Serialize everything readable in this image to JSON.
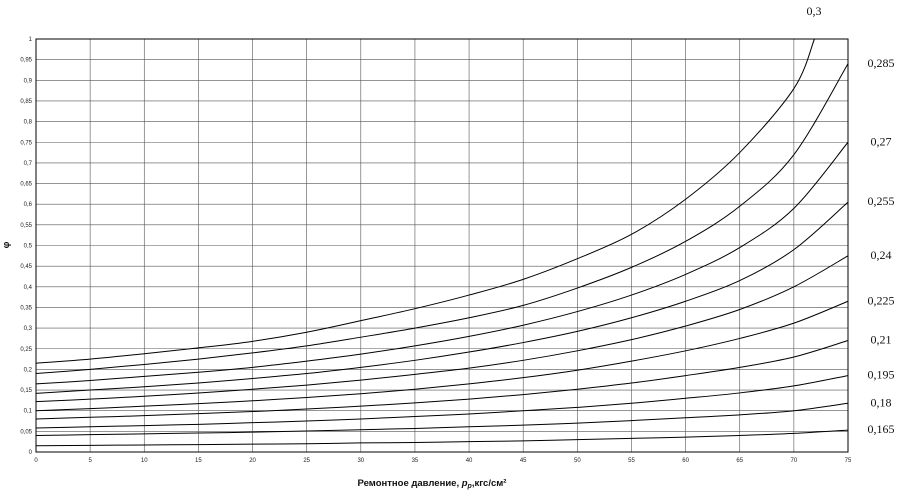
{
  "chart_data": {
    "type": "line",
    "xlabel": "Ремонтное давление, ",
    "xlabel_var": "p",
    "xlabel_sub": "р",
    "xlabel_unit": ",кгс/см²",
    "ylabel": "φ",
    "xlim": [
      0,
      75
    ],
    "ylim": [
      0,
      1
    ],
    "grid": true,
    "x_ticks": [
      "0",
      "5",
      "10",
      "15",
      "20",
      "25",
      "30",
      "35",
      "40",
      "45",
      "50",
      "55",
      "60",
      "65",
      "70",
      "75"
    ],
    "y_ticks": [
      "0",
      "0,05",
      "0,1",
      "0,15",
      "0,2",
      "0,25",
      "0,3",
      "0,35",
      "0,4",
      "0,45",
      "0,5",
      "0,55",
      "0,6",
      "0,65",
      "0,7",
      "0,75",
      "0,8",
      "0,85",
      "0,9",
      "0,95",
      "1"
    ],
    "x": [
      0,
      5,
      10,
      15,
      20,
      25,
      30,
      35,
      40,
      45,
      50,
      55,
      60,
      65,
      70,
      75
    ],
    "series": [
      {
        "name": "0,3",
        "values": [
          0.215,
          0.225,
          0.238,
          0.252,
          0.268,
          0.29,
          0.318,
          0.347,
          0.38,
          0.418,
          0.468,
          0.527,
          0.612,
          0.725,
          0.88,
          null
        ],
        "end": [
          71.9,
          1.0
        ]
      },
      {
        "name": "0,285",
        "values": [
          0.19,
          0.2,
          0.212,
          0.225,
          0.24,
          0.257,
          0.278,
          0.3,
          0.325,
          0.355,
          0.397,
          0.447,
          0.51,
          0.595,
          0.72,
          0.94
        ]
      },
      {
        "name": "0,27",
        "values": [
          0.165,
          0.173,
          0.183,
          0.193,
          0.205,
          0.22,
          0.237,
          0.257,
          0.28,
          0.307,
          0.34,
          0.38,
          0.43,
          0.495,
          0.59,
          0.75
        ]
      },
      {
        "name": "0,255",
        "values": [
          0.142,
          0.15,
          0.158,
          0.167,
          0.178,
          0.19,
          0.205,
          0.222,
          0.242,
          0.265,
          0.292,
          0.325,
          0.365,
          0.415,
          0.49,
          0.605
        ]
      },
      {
        "name": "0,24",
        "values": [
          0.122,
          0.128,
          0.135,
          0.143,
          0.152,
          0.162,
          0.174,
          0.188,
          0.203,
          0.222,
          0.245,
          0.272,
          0.305,
          0.345,
          0.4,
          0.475
        ]
      },
      {
        "name": "0,225",
        "values": [
          0.1,
          0.105,
          0.111,
          0.117,
          0.124,
          0.132,
          0.141,
          0.152,
          0.165,
          0.18,
          0.198,
          0.22,
          0.245,
          0.275,
          0.312,
          0.365
        ]
      },
      {
        "name": "0,21",
        "values": [
          0.08,
          0.084,
          0.088,
          0.093,
          0.098,
          0.104,
          0.111,
          0.119,
          0.128,
          0.139,
          0.152,
          0.167,
          0.185,
          0.205,
          0.23,
          0.27
        ]
      },
      {
        "name": "0,195",
        "values": [
          0.058,
          0.061,
          0.064,
          0.067,
          0.071,
          0.075,
          0.08,
          0.086,
          0.092,
          0.1,
          0.108,
          0.118,
          0.13,
          0.143,
          0.16,
          0.185
        ]
      },
      {
        "name": "0,18",
        "values": [
          0.04,
          0.042,
          0.044,
          0.046,
          0.048,
          0.051,
          0.054,
          0.057,
          0.061,
          0.065,
          0.07,
          0.076,
          0.083,
          0.09,
          0.1,
          0.118
        ]
      },
      {
        "name": "0,165",
        "values": [
          0.015,
          0.016,
          0.017,
          0.018,
          0.019,
          0.02,
          0.022,
          0.023,
          0.025,
          0.027,
          0.03,
          0.033,
          0.036,
          0.04,
          0.045,
          0.053
        ]
      }
    ]
  }
}
